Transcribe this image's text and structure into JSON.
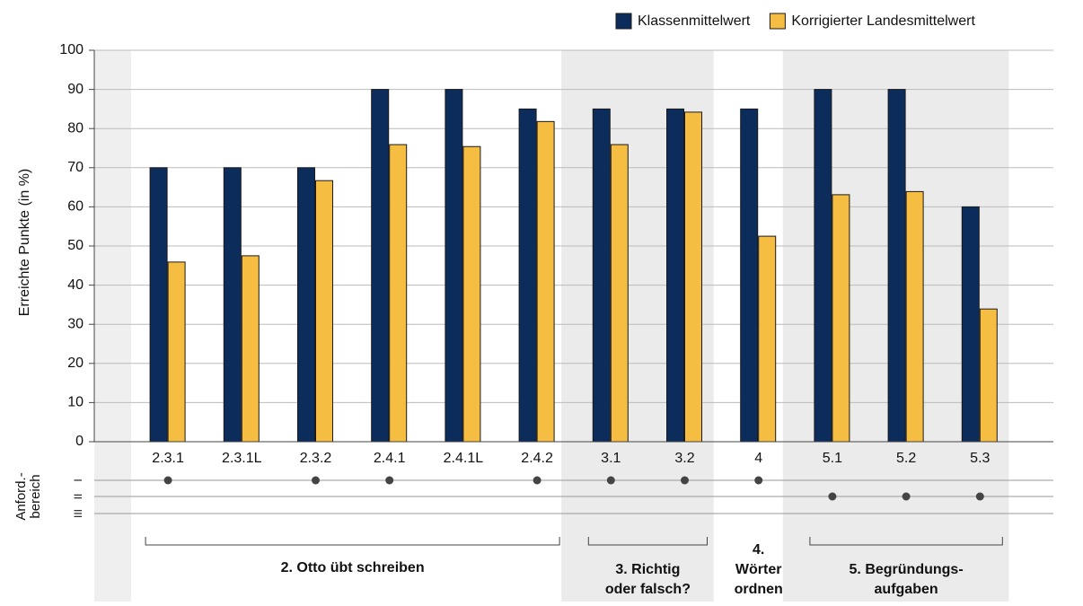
{
  "chart_data": {
    "type": "bar",
    "y_axis_label": "Erreichte Punkte (in %)",
    "categories": [
      "2.3.1",
      "2.3.1L",
      "2.3.2",
      "2.4.1",
      "2.4.1L",
      "2.4.2",
      "3.1",
      "3.2",
      "4",
      "5.1",
      "5.2",
      "5.3"
    ],
    "series": [
      {
        "name": "Klassenmittelwert",
        "color": "#0c2c5c",
        "values": [
          70,
          70,
          70,
          90,
          90,
          85,
          85,
          85,
          85,
          90,
          90,
          60
        ]
      },
      {
        "name": "Korrigierter Landesmittelwert",
        "color": "#f5bd42",
        "values": [
          45.9,
          47.5,
          66.7,
          75.9,
          75.4,
          81.8,
          75.9,
          84.2,
          52.5,
          63.1,
          63.9,
          33.9
        ]
      }
    ],
    "ylim": [
      0,
      100
    ],
    "yticks": [
      0,
      10,
      20,
      30,
      40,
      50,
      60,
      70,
      80,
      90,
      100
    ],
    "grid": true,
    "legend": "top-right",
    "requirement_axis_label": [
      "Anford.-",
      "bereich"
    ],
    "requirement_rows": [
      "I",
      "II",
      "III"
    ],
    "requirement_levels": [
      "I",
      null,
      "I",
      "I",
      null,
      "I",
      "I",
      "I",
      "I",
      "II",
      "II",
      "II"
    ],
    "groups": [
      {
        "label": [
          "2. Otto übt schreiben"
        ]
      },
      {
        "label": [
          "3. Richtig",
          "oder falsch?"
        ]
      },
      {
        "label": [
          "4.",
          "Wörter",
          "ordnen"
        ]
      },
      {
        "label": [
          "5. Begründungs-",
          "aufgaben"
        ]
      }
    ]
  }
}
